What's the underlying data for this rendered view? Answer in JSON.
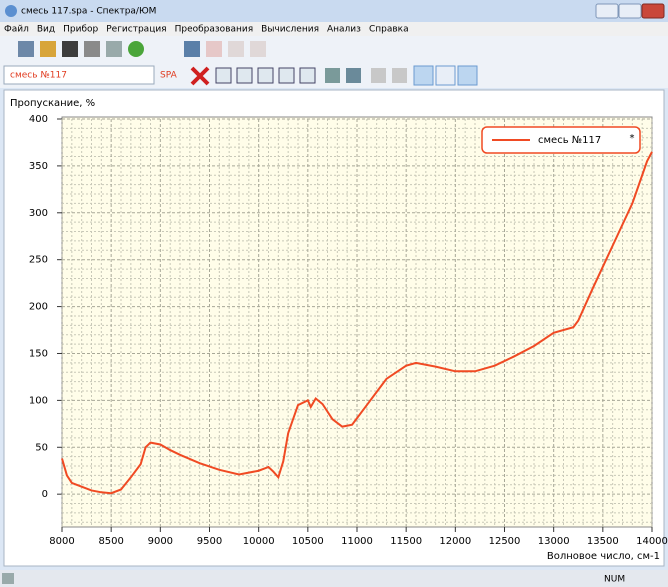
{
  "window": {
    "title": "смесь 117.spa - Спектра/ЮМ"
  },
  "menu": [
    "Файл",
    "Вид",
    "Прибор",
    "Регистрация",
    "Преобразования",
    "Вычисления",
    "Анализ",
    "Справка"
  ],
  "toolbar": {
    "sample": "смесь №117",
    "format": "SPA"
  },
  "chart_data": {
    "type": "line",
    "x_label": "Волновое число, см-1",
    "y_label": "Пропускание, %",
    "x": [
      8000,
      8050,
      8100,
      8200,
      8300,
      8400,
      8500,
      8600,
      8700,
      8800,
      8850,
      8900,
      9000,
      9100,
      9200,
      9400,
      9600,
      9800,
      10000,
      10100,
      10150,
      10200,
      10250,
      10300,
      10400,
      10500,
      10530,
      10580,
      10650,
      10750,
      10850,
      10950,
      11100,
      11300,
      11500,
      11600,
      11800,
      12000,
      12200,
      12400,
      12600,
      12800,
      13000,
      13200,
      13250,
      13400,
      13600,
      13800,
      13950,
      14000
    ],
    "series": [
      {
        "name": "смесь №117",
        "color": "#f04a23",
        "values": [
          38,
          20,
          12,
          8,
          4,
          2,
          1,
          5,
          18,
          32,
          50,
          55,
          53,
          47,
          42,
          33,
          26,
          21,
          25,
          29,
          24,
          18,
          35,
          65,
          95,
          100,
          93,
          102,
          96,
          80,
          72,
          74,
          95,
          123,
          137,
          140,
          136,
          131,
          131,
          137,
          147,
          158,
          172,
          178,
          185,
          220,
          265,
          310,
          355,
          365
        ]
      }
    ],
    "xlim": [
      8000,
      14000
    ],
    "xticks": [
      8000,
      8500,
      9000,
      9500,
      10000,
      10500,
      11000,
      11500,
      12000,
      12500,
      13000,
      13500,
      14000
    ],
    "ylim": [
      -35,
      400
    ],
    "yticks": [
      0,
      50,
      100,
      150,
      200,
      250,
      300,
      350,
      400
    ],
    "grid": true,
    "legend": "upper right",
    "legend_close": "*"
  },
  "status": {
    "num": "NUM"
  }
}
